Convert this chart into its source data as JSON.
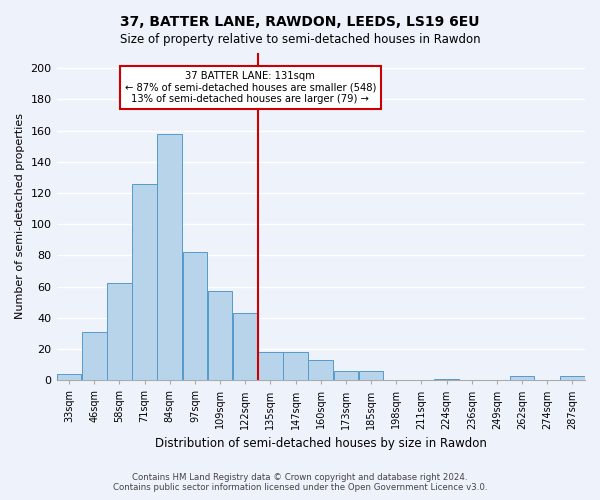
{
  "title": "37, BATTER LANE, RAWDON, LEEDS, LS19 6EU",
  "subtitle": "Size of property relative to semi-detached houses in Rawdon",
  "xlabel": "Distribution of semi-detached houses by size in Rawdon",
  "ylabel": "Number of semi-detached properties",
  "bin_labels": [
    "33sqm",
    "46sqm",
    "58sqm",
    "71sqm",
    "84sqm",
    "97sqm",
    "109sqm",
    "122sqm",
    "135sqm",
    "147sqm",
    "160sqm",
    "173sqm",
    "185sqm",
    "198sqm",
    "211sqm",
    "224sqm",
    "236sqm",
    "249sqm",
    "262sqm",
    "274sqm",
    "287sqm"
  ],
  "bar_heights": [
    4,
    31,
    62,
    126,
    158,
    82,
    57,
    43,
    18,
    18,
    13,
    6,
    6,
    0,
    0,
    1,
    0,
    0,
    3,
    0,
    3
  ],
  "bar_color": "#b8d4ea",
  "bar_edge_color": "#5599cc",
  "vline_bin": 8,
  "annotation_title": "37 BATTER LANE: 131sqm",
  "annotation_line1": "← 87% of semi-detached houses are smaller (548)",
  "annotation_line2": "13% of semi-detached houses are larger (79) →",
  "annotation_box_color": "#ffffff",
  "annotation_box_edge_color": "#cc0000",
  "vline_color": "#cc0000",
  "ylim": [
    0,
    210
  ],
  "yticks": [
    0,
    20,
    40,
    60,
    80,
    100,
    120,
    140,
    160,
    180,
    200
  ],
  "footer1": "Contains HM Land Registry data © Crown copyright and database right 2024.",
  "footer2": "Contains public sector information licensed under the Open Government Licence v3.0.",
  "bg_color": "#eef2fb"
}
